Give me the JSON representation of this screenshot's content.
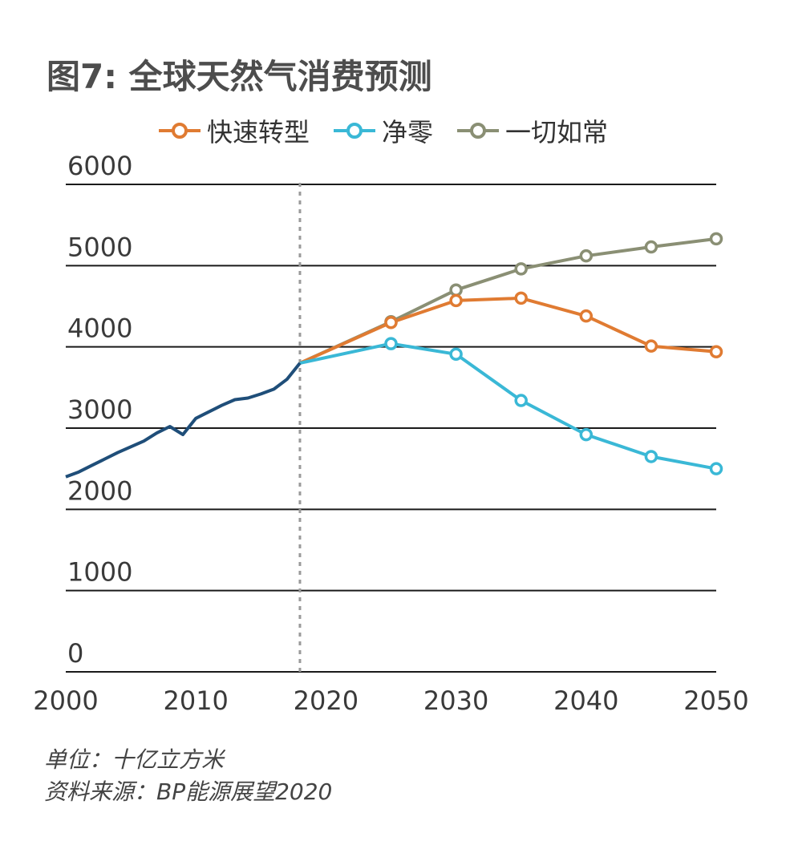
{
  "title": "图7: 全球天然气消费预测",
  "legend": [
    {
      "label": "快速转型",
      "color": "#e07b32"
    },
    {
      "label": "净零",
      "color": "#3ab8d6"
    },
    {
      "label": "一切如常",
      "color": "#8a8f74"
    }
  ],
  "footer": {
    "unit": "单位：十亿立方米",
    "source": "资料来源：BP能源展望2020"
  },
  "chart_data": {
    "type": "line",
    "title": "图7: 全球天然气消费预测",
    "ylim": [
      0,
      6000
    ],
    "xlim": [
      2000,
      2050
    ],
    "y_ticks": [
      "6000",
      "5000",
      "4000",
      "3000",
      "2000",
      "1000",
      "0"
    ],
    "x_ticks": [
      "2000",
      "2010",
      "2020",
      "2030",
      "2040",
      "2050"
    ],
    "grid": "horizontal",
    "legend_position": "top",
    "divider_year": 2018,
    "history": {
      "color": "#1f4e79",
      "points": [
        [
          2000,
          2400
        ],
        [
          2001,
          2460
        ],
        [
          2002,
          2540
        ],
        [
          2003,
          2620
        ],
        [
          2004,
          2700
        ],
        [
          2005,
          2770
        ],
        [
          2006,
          2840
        ],
        [
          2007,
          2940
        ],
        [
          2008,
          3020
        ],
        [
          2009,
          2920
        ],
        [
          2010,
          3120
        ],
        [
          2011,
          3200
        ],
        [
          2012,
          3280
        ],
        [
          2013,
          3350
        ],
        [
          2014,
          3370
        ],
        [
          2015,
          3420
        ],
        [
          2016,
          3480
        ],
        [
          2017,
          3600
        ],
        [
          2018,
          3800
        ]
      ]
    },
    "series": [
      {
        "name": "快速转型",
        "color": "#e07b32",
        "points": [
          [
            2018,
            3800
          ],
          [
            2025,
            4300
          ],
          [
            2030,
            4570
          ],
          [
            2035,
            4600
          ],
          [
            2040,
            4380
          ],
          [
            2045,
            4010
          ],
          [
            2050,
            3940
          ]
        ]
      },
      {
        "name": "净零",
        "color": "#3ab8d6",
        "points": [
          [
            2018,
            3800
          ],
          [
            2025,
            4040
          ],
          [
            2030,
            3910
          ],
          [
            2035,
            3340
          ],
          [
            2040,
            2920
          ],
          [
            2045,
            2650
          ],
          [
            2050,
            2500
          ]
        ]
      },
      {
        "name": "一切如常",
        "color": "#8a8f74",
        "points": [
          [
            2018,
            3800
          ],
          [
            2025,
            4310
          ],
          [
            2030,
            4700
          ],
          [
            2035,
            4960
          ],
          [
            2040,
            5120
          ],
          [
            2045,
            5230
          ],
          [
            2050,
            5330
          ]
        ]
      }
    ]
  }
}
